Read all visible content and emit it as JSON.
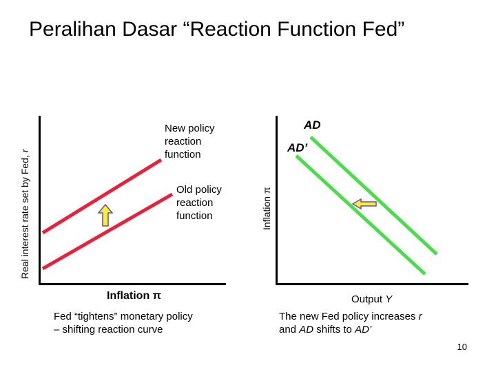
{
  "title": "Peralihan Dasar “Reaction Function Fed”",
  "left_panel": {
    "ylabel": "Real interest rate set by Fed, ",
    "ylabel_var": "r",
    "xlabel": "Inflation π",
    "new_curve_label": [
      "New policy",
      "reaction",
      "function"
    ],
    "old_curve_label": [
      "Old policy",
      "reaction",
      "function"
    ],
    "caption": [
      "Fed “tightens” monetary policy",
      "– shifting reaction curve"
    ]
  },
  "right_panel": {
    "ylabel": "Inflation π",
    "xlabel": "Output ",
    "xlabel_var": "Y",
    "curve_ad": "AD",
    "curve_ad_prime": "AD’",
    "caption_line1_a": "The new Fed policy increases ",
    "caption_line1_var": "r",
    "caption_line2_a": "and ",
    "caption_line2_var1": "AD",
    "caption_line2_b": " shifts to ",
    "caption_line2_var2": "AD’"
  },
  "colors": {
    "reaction_curve": "#e8203a",
    "ad_curve": "#4bdc4b",
    "arrow_fill": "#f5f03a",
    "arrow_stroke": "#6a4a9a"
  },
  "page_number": "10"
}
